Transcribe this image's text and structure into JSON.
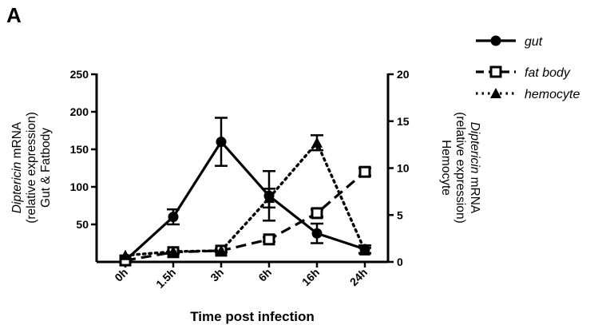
{
  "panel_label": "A",
  "chart_data": {
    "type": "line",
    "categories": [
      "0h",
      "1.5h",
      "3h",
      "6h",
      "16h",
      "24h"
    ],
    "xlabel": "Time post infection",
    "ylabel_left": {
      "line1_italic": "Diptericin",
      "line1_rest": " mRNA",
      "line2": "(relative expression)",
      "line3": "Gut & Fatbody"
    },
    "ylabel_right": {
      "line1_italic": "Diptericin",
      "line1_rest": " mRNA",
      "line2": "(relative expression)",
      "line3": "Hemocyte"
    },
    "ylim_left": [
      0,
      250
    ],
    "yticks_left": [
      50,
      100,
      150,
      200,
      250
    ],
    "ylim_right": [
      0,
      20
    ],
    "yticks_right": [
      0,
      5,
      10,
      15,
      20
    ],
    "legend_position": "top-right",
    "grid": false,
    "series": [
      {
        "name": "gut",
        "axis": "left",
        "line_style": "solid",
        "marker": "circle-filled",
        "values": [
          2,
          60,
          160,
          88,
          38,
          17
        ],
        "error": [
          0,
          10,
          32,
          33,
          13,
          5
        ]
      },
      {
        "name": "fat body",
        "axis": "left",
        "line_style": "dashed",
        "marker": "square-open",
        "values": [
          2,
          13,
          15,
          30,
          65,
          120
        ],
        "error": [
          0,
          2,
          2,
          3,
          5,
          5
        ]
      },
      {
        "name": "hemocyte",
        "axis": "right",
        "line_style": "dotted",
        "marker": "triangle-filled",
        "values": [
          0.7,
          1.1,
          1.2,
          6.8,
          12.7,
          1.2
        ],
        "error": [
          0,
          0,
          0,
          1,
          0.8,
          0.3
        ]
      }
    ]
  }
}
